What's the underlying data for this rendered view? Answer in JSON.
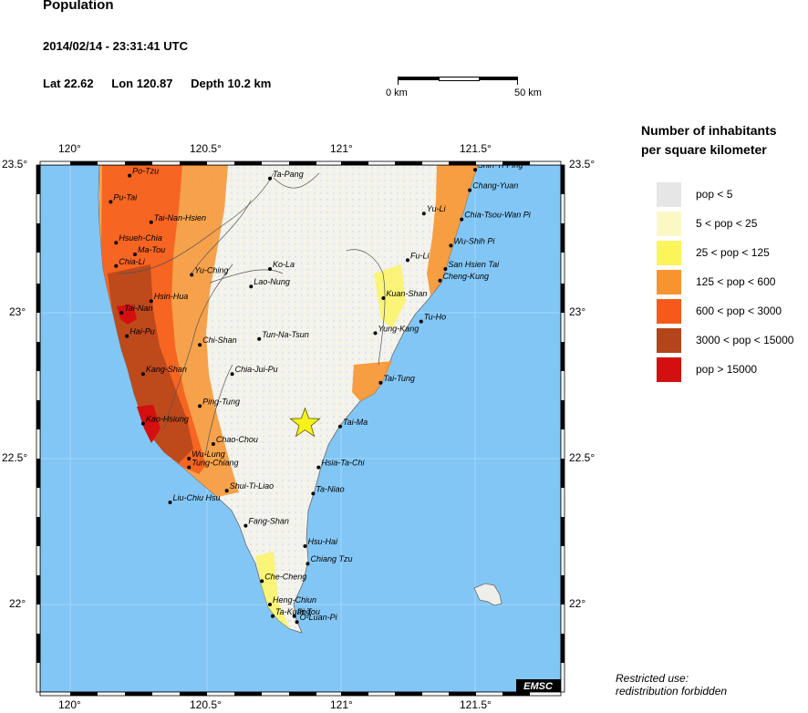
{
  "header": {
    "title": "Population",
    "datetime": "2014/02/14 - 23:31:41 UTC",
    "lat": "Lat 22.62",
    "lon": "Lon 120.87",
    "depth": "Depth  10.2 km"
  },
  "scalebar": {
    "start_label": "0 km",
    "end_label": "50 km"
  },
  "legend": {
    "title_line1": "Number of inhabitants",
    "title_line2": "per square kilometer",
    "items": [
      {
        "label": "pop < 5",
        "color": "#e6e6e6"
      },
      {
        "label": "5 < pop < 25",
        "color": "#fcf8c6"
      },
      {
        "label": "25 < pop < 125",
        "color": "#fbf45a"
      },
      {
        "label": "125 < pop < 600",
        "color": "#f7942f"
      },
      {
        "label": "600 < pop < 3000",
        "color": "#f65a1a"
      },
      {
        "label": "3000 < pop < 15000",
        "color": "#b4441a"
      },
      {
        "label": "pop > 15000",
        "color": "#d40f0f"
      }
    ]
  },
  "axes": {
    "lon_ticks": [
      "120°",
      "120.5°",
      "121°",
      "121.5°"
    ],
    "lat_ticks": [
      "23.5°",
      "23°",
      "22.5°",
      "22°"
    ]
  },
  "places": [
    {
      "name": "Po-Tzu",
      "lon": 120.22,
      "lat": 23.47
    },
    {
      "name": "Ta-Pang",
      "lon": 120.74,
      "lat": 23.46
    },
    {
      "name": "Shih-Ti-Ping",
      "lon": 121.5,
      "lat": 23.49
    },
    {
      "name": "Chang-Yuan",
      "lon": 121.48,
      "lat": 23.42
    },
    {
      "name": "Pu-Tai",
      "lon": 120.15,
      "lat": 23.38
    },
    {
      "name": "Yu-Li",
      "lon": 121.31,
      "lat": 23.34
    },
    {
      "name": "Chia-Tsou-Wan Pi",
      "lon": 121.45,
      "lat": 23.32
    },
    {
      "name": "Tai-Nan-Hsien",
      "lon": 120.3,
      "lat": 23.31
    },
    {
      "name": "Hsueh-Chia",
      "lon": 120.17,
      "lat": 23.24
    },
    {
      "name": "Wu-Shih Pi",
      "lon": 121.41,
      "lat": 23.23
    },
    {
      "name": "Ma-Tou",
      "lon": 120.24,
      "lat": 23.2
    },
    {
      "name": "Fu-Li",
      "lon": 121.25,
      "lat": 23.18
    },
    {
      "name": "Chia-Li",
      "lon": 120.17,
      "lat": 23.16
    },
    {
      "name": "San Hsien Tai",
      "lon": 121.39,
      "lat": 23.15
    },
    {
      "name": "Ko-La",
      "lon": 120.74,
      "lat": 23.15
    },
    {
      "name": "Yu-Ching",
      "lon": 120.45,
      "lat": 23.13
    },
    {
      "name": "Cheng-Kung",
      "lon": 121.37,
      "lat": 23.11
    },
    {
      "name": "Lao-Nung",
      "lon": 120.67,
      "lat": 23.09
    },
    {
      "name": "Kuan-Shan",
      "lon": 121.16,
      "lat": 23.05
    },
    {
      "name": "Hsin-Hua",
      "lon": 120.3,
      "lat": 23.04
    },
    {
      "name": "Tai-Nan",
      "lon": 120.19,
      "lat": 23.0
    },
    {
      "name": "Tu-Ho",
      "lon": 121.3,
      "lat": 22.97
    },
    {
      "name": "Yung-Kang",
      "lon": 121.13,
      "lat": 22.93
    },
    {
      "name": "Tun-Na-Tsun",
      "lon": 120.7,
      "lat": 22.91
    },
    {
      "name": "Hai-Pu",
      "lon": 120.21,
      "lat": 22.92
    },
    {
      "name": "Chi-Shan",
      "lon": 120.48,
      "lat": 22.89
    },
    {
      "name": "Kang-Shan",
      "lon": 120.27,
      "lat": 22.79
    },
    {
      "name": "Chia-Jui-Pu",
      "lon": 120.6,
      "lat": 22.79
    },
    {
      "name": "Tai-Tung",
      "lon": 121.15,
      "lat": 22.76
    },
    {
      "name": "Ping-Tung",
      "lon": 120.48,
      "lat": 22.68
    },
    {
      "name": "Kao-Hsiung",
      "lon": 120.27,
      "lat": 22.62
    },
    {
      "name": "Tai-Ma",
      "lon": 121.0,
      "lat": 22.61
    },
    {
      "name": "Chao-Chou",
      "lon": 120.53,
      "lat": 22.55
    },
    {
      "name": "Wu-Lung",
      "lon": 120.44,
      "lat": 22.5
    },
    {
      "name": "Hsia-Ta-Chi",
      "lon": 120.92,
      "lat": 22.47
    },
    {
      "name": "Tung-Chiang",
      "lon": 120.44,
      "lat": 22.47
    },
    {
      "name": "Shui-Ti-Liao",
      "lon": 120.58,
      "lat": 22.39
    },
    {
      "name": "Ta-Niao",
      "lon": 120.9,
      "lat": 22.38
    },
    {
      "name": "Liu-Chiu Hsu",
      "lon": 120.37,
      "lat": 22.35
    },
    {
      "name": "Fang-Shan",
      "lon": 120.65,
      "lat": 22.27
    },
    {
      "name": "Hsu-Hai",
      "lon": 120.87,
      "lat": 22.2
    },
    {
      "name": "Chiang Tzu",
      "lon": 120.88,
      "lat": 22.14
    },
    {
      "name": "Che-Cheng",
      "lon": 120.71,
      "lat": 22.08
    },
    {
      "name": "Heng-Chiun",
      "lon": 120.74,
      "lat": 22.0
    },
    {
      "name": "Ta-Kuang",
      "lon": 120.75,
      "lat": 21.96
    },
    {
      "name": "Pi Tou",
      "lon": 120.83,
      "lat": 21.96
    },
    {
      "name": "O-Luan-Pi",
      "lon": 120.84,
      "lat": 21.94
    }
  ],
  "epicenter": {
    "lon": 120.87,
    "lat": 22.62
  },
  "credit": "EMSC",
  "footer": {
    "line1": "Restricted use:",
    "line2": "redistribution forbidden"
  }
}
